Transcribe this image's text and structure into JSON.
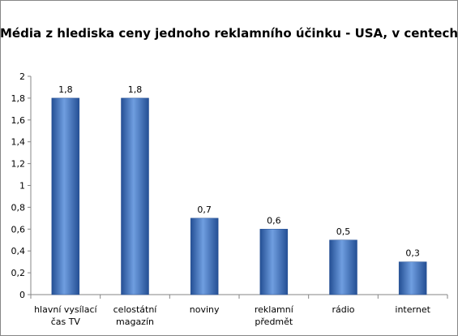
{
  "chart_data": {
    "type": "bar",
    "title": "Média z hlediska ceny jednoho reklamního  účinku - USA, v centech",
    "categories": [
      [
        "hlavní vysílací",
        "čas TV"
      ],
      [
        "celostátní",
        "magazín"
      ],
      [
        "noviny"
      ],
      [
        "reklamní",
        "předmět"
      ],
      [
        "rádio"
      ],
      [
        "internet"
      ]
    ],
    "values": [
      1.8,
      1.8,
      0.7,
      0.6,
      0.5,
      0.3
    ],
    "value_labels": [
      "1,8",
      "1,8",
      "0,7",
      "0,6",
      "0,5",
      "0,3"
    ],
    "ylim": [
      0,
      2
    ],
    "yticks": [
      0,
      0.2,
      0.4,
      0.6,
      0.8,
      1,
      1.2,
      1.4,
      1.6,
      1.8,
      2
    ],
    "ytick_labels": [
      "0",
      "0,2",
      "0,4",
      "0,6",
      "0,8",
      "1",
      "1,2",
      "1,4",
      "1,6",
      "1,8",
      "2"
    ],
    "grid": false,
    "bar_color": "#3a6fbf",
    "bar_color_light": "#6f9ee0",
    "bar_color_dark": "#244f94"
  }
}
